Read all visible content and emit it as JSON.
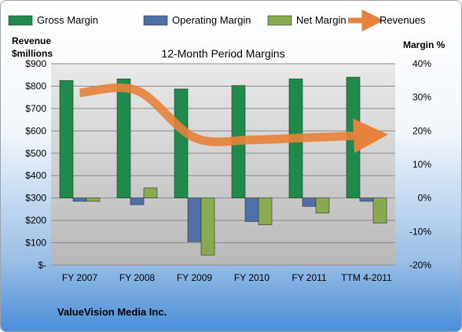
{
  "chart_data": {
    "type": "bar",
    "title": "12-Month Period Margins",
    "categories": [
      "FY 2007",
      "FY 2008",
      "FY 2009",
      "FY 2010",
      "FY 2011",
      "TTM 4-2011"
    ],
    "left_axis": {
      "label_line1": "Revenue",
      "label_line2": "$millions",
      "range": [
        0,
        900
      ],
      "ticks": [
        "$-",
        "$100",
        "$200",
        "$300",
        "$400",
        "$500",
        "$600",
        "$700",
        "$800",
        "$900"
      ]
    },
    "right_axis": {
      "label": "Margin %",
      "range": [
        -20,
        40
      ],
      "ticks": [
        "-20%",
        "-10%",
        "0%",
        "10%",
        "20%",
        "30%",
        "40%"
      ]
    },
    "series": [
      {
        "name": "Gross Margin",
        "axis": "right",
        "color": "#1f8a4c",
        "values": [
          35,
          35.5,
          32.5,
          33.5,
          35.5,
          36
        ]
      },
      {
        "name": "Operating Margin",
        "axis": "right",
        "color": "#4f6fa8",
        "values": [
          -1,
          -2,
          -13,
          -7,
          -2.5,
          -1
        ]
      },
      {
        "name": "Net Margin",
        "axis": "right",
        "color": "#8aaa4e",
        "values": [
          -1,
          3,
          -17,
          -8,
          -4.5,
          -7.5
        ]
      },
      {
        "name": "Revenues",
        "axis": "left",
        "color": "#e8823a",
        "type": "line",
        "values": [
          770,
          780,
          570,
          560,
          570,
          580
        ]
      }
    ],
    "grid": true,
    "legend_position": "top"
  },
  "footer": {
    "company": "ValueVision Media Inc."
  }
}
